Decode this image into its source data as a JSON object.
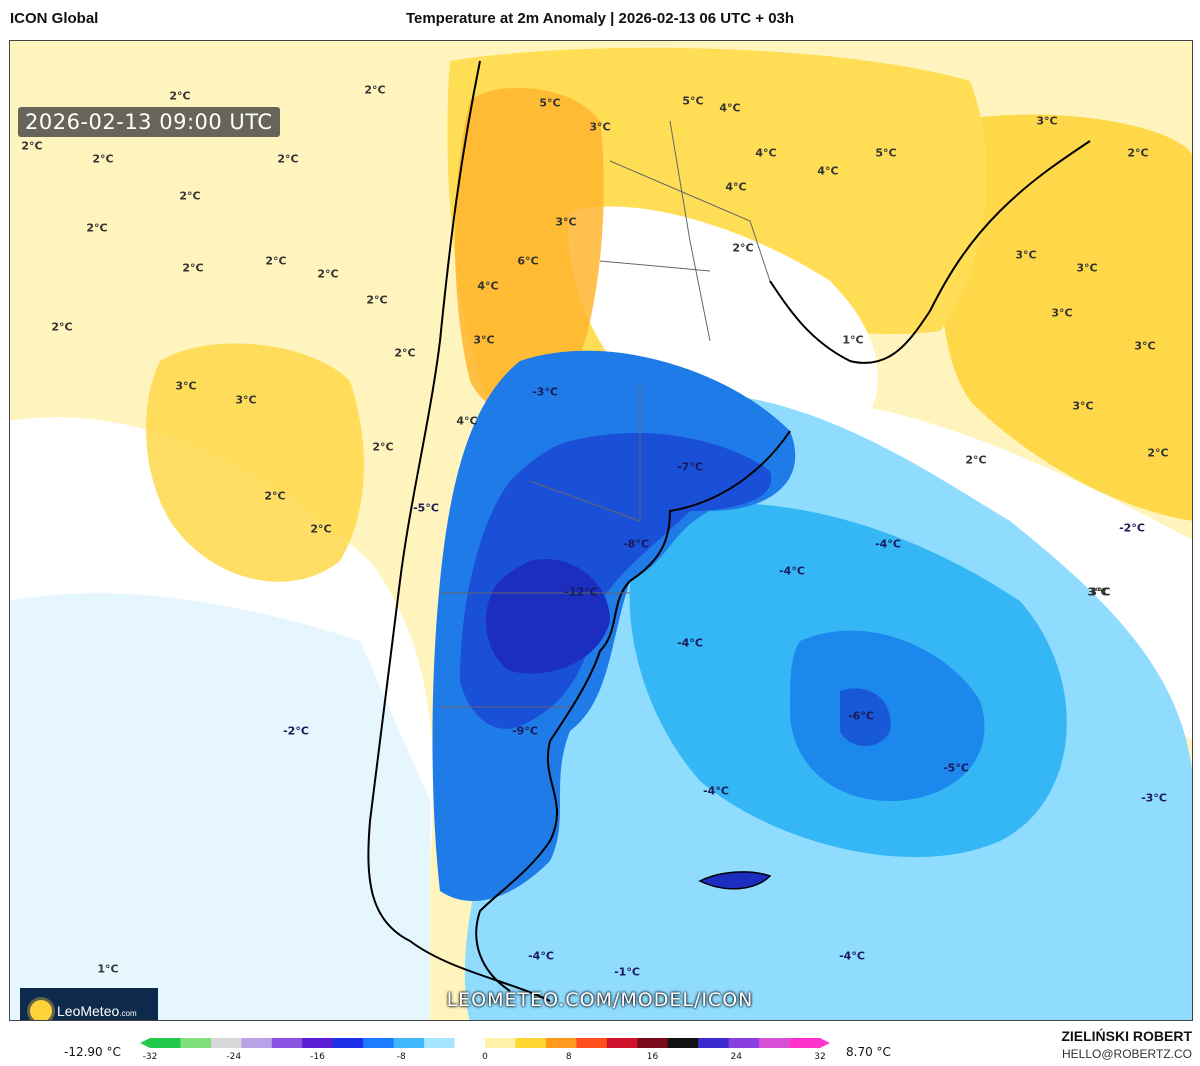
{
  "header": {
    "model": "ICON Global",
    "title": "Temperature at 2m Anomaly | 2026-02-13 06 UTC + 03h"
  },
  "map": {
    "valid_time": "2026-02-13 09:00 UTC",
    "url": "LEOMETEO.COM/MODEL/ICON",
    "logo_text": "LeoMeteo",
    "logo_suffix": ".com",
    "labels": [
      "2°C",
      "2°C",
      "2°C",
      "2°C",
      "2°C",
      "2°C",
      "2°C",
      "2°C",
      "2°C",
      "2°C",
      "2°C",
      "2°C",
      "2°C",
      "2°C",
      "2°C",
      "3°C",
      "3°C",
      "2°C",
      "2°C",
      "5°C",
      "3°C",
      "4°C",
      "5°C",
      "4°C",
      "3°C",
      "4°C",
      "4°C",
      "5°C",
      "2°C",
      "2°C",
      "3°C",
      "3°C",
      "3°C",
      "3°C",
      "3°C",
      "2°C",
      "3°C",
      "3°C",
      "6°C",
      "4°C",
      "3°C",
      "4°C",
      "1°C",
      "-3°C",
      "-7°C",
      "-5°C",
      "-8°C",
      "-12°C",
      "-4°C",
      "-4°C",
      "-4°C",
      "-2°C",
      "-2°C",
      "-9°C",
      "-6°C",
      "-5°C",
      "-4°C",
      "-3°C",
      "-4°C",
      "-4°C",
      "-1°C",
      "1°C",
      "3°C"
    ]
  },
  "colorbar": {
    "min_label": "-12.90 °C",
    "max_label": "8.70 °C",
    "ticks": [
      "-32",
      "-24",
      "-16",
      "-8",
      "0",
      "8",
      "16",
      "24",
      "32"
    ],
    "colors": [
      "#22c84a",
      "#7fe07a",
      "#d8d8d8",
      "#b9a3e6",
      "#8a52e0",
      "#5a1dd6",
      "#1e30e8",
      "#1d7bff",
      "#3fb7ff",
      "#a7e6ff",
      "#ffffff",
      "#fff1a6",
      "#ffd633",
      "#ff9a1f",
      "#ff4f1f",
      "#d0112b",
      "#7a0a1a",
      "#111111",
      "#3a2ad0",
      "#8a3fe0",
      "#d84fd8",
      "#ff33cc"
    ]
  },
  "credit": {
    "author": "ZIELIŃSKI ROBERT",
    "email": "HELLO@ROBERTZ.CO"
  }
}
